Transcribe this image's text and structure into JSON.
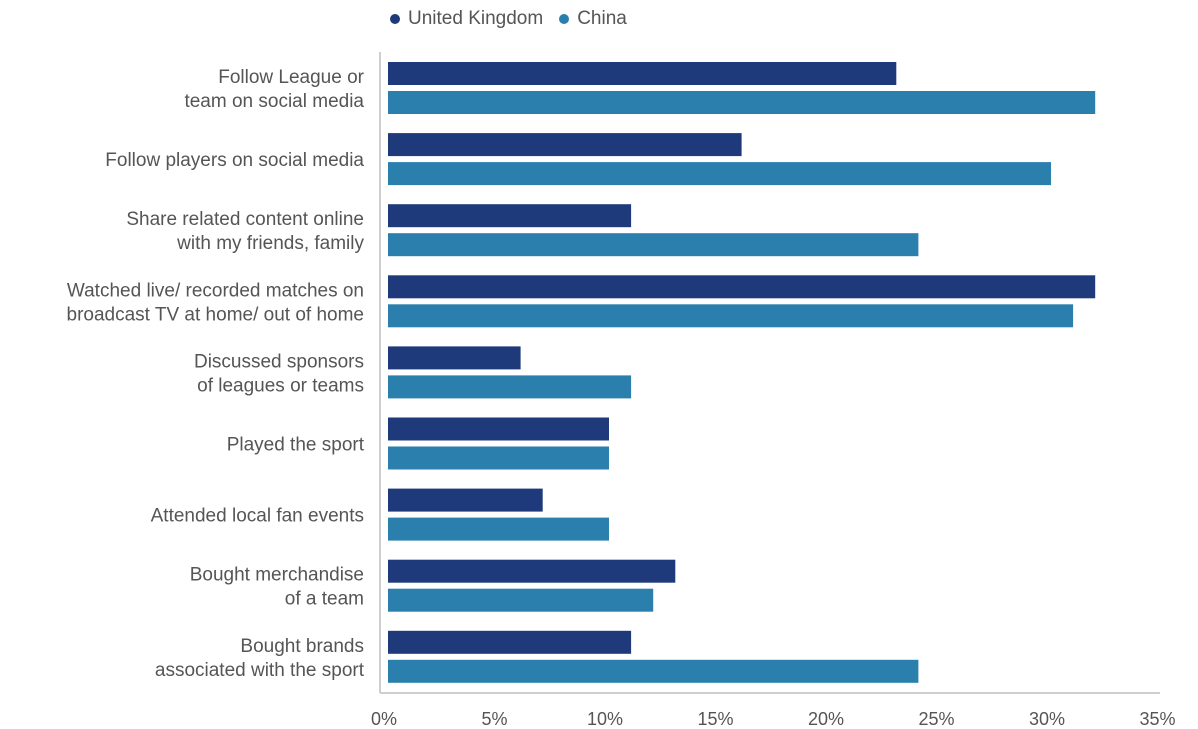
{
  "chart_data": {
    "type": "bar",
    "orientation": "horizontal",
    "categories": [
      [
        "Follow League or",
        "team on social media"
      ],
      [
        "Follow players on social media"
      ],
      [
        "Share related content online",
        "with my friends, family"
      ],
      [
        "Watched live/ recorded matches on",
        "broadcast TV at home/ out of home"
      ],
      [
        "Discussed sponsors",
        "of leagues or teams"
      ],
      [
        "Played the sport"
      ],
      [
        "Attended local fan events"
      ],
      [
        "Bought merchandise",
        "of a team"
      ],
      [
        "Bought brands",
        "associated with the sport"
      ]
    ],
    "series": [
      {
        "name": "United Kingdom",
        "color": "#1f3a7a",
        "values": [
          23,
          16,
          11,
          32,
          6,
          10,
          7,
          13,
          11
        ]
      },
      {
        "name": "China",
        "color": "#2a7fad",
        "values": [
          32,
          30,
          24,
          31,
          11,
          10,
          10,
          12,
          24
        ]
      }
    ],
    "xlim": [
      0,
      35
    ],
    "xticks": [
      0,
      5,
      10,
      15,
      20,
      25,
      30,
      35
    ],
    "tick_format": "percent",
    "legend_position": "top",
    "grid": false,
    "title": "",
    "xlabel": "",
    "ylabel": ""
  }
}
